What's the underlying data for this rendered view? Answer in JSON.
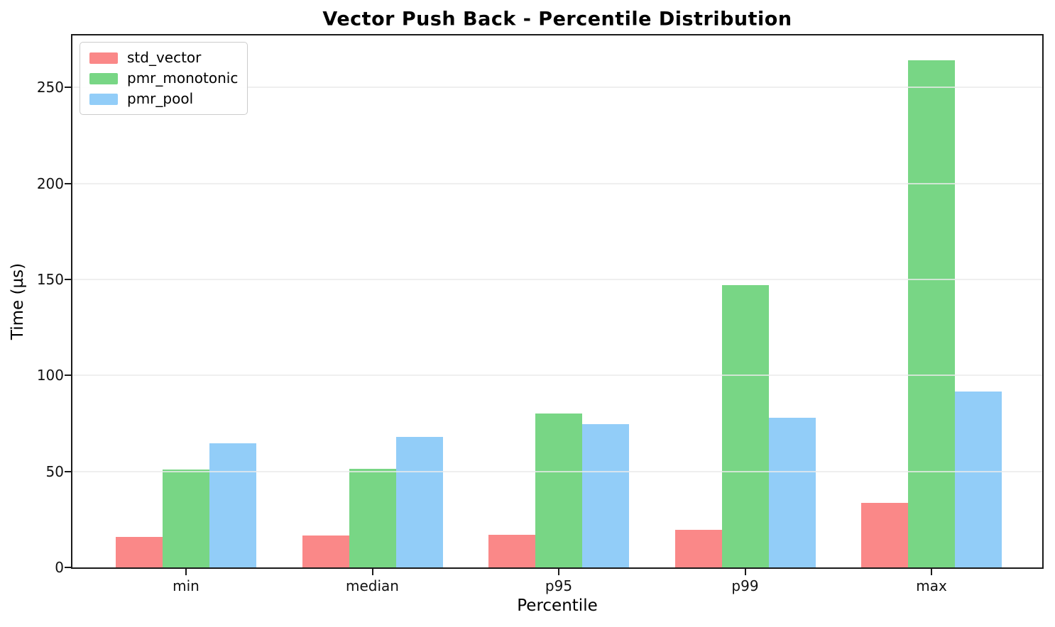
{
  "chart_data": {
    "type": "bar",
    "title": "Vector Push Back - Percentile Distribution",
    "xlabel": "Percentile",
    "ylabel": "Time (µs)",
    "categories": [
      "min",
      "median",
      "p95",
      "p99",
      "max"
    ],
    "series": [
      {
        "name": "std_vector",
        "color": "#fa8888",
        "values": [
          16,
          16.5,
          17,
          19.5,
          33.5
        ]
      },
      {
        "name": "pmr_monotonic",
        "color": "#78d685",
        "values": [
          51,
          51.5,
          80,
          147,
          264
        ]
      },
      {
        "name": "pmr_pool",
        "color": "#92cdf8",
        "values": [
          64.5,
          68,
          74.5,
          78,
          91.5
        ]
      }
    ],
    "ylim": [
      0,
      277
    ],
    "yticks": [
      0,
      50,
      100,
      150,
      200,
      250
    ],
    "grid": true,
    "grid_axis": "y",
    "legend_position": "upper left",
    "colors": {
      "spine": "#1a1a1a",
      "gridline": "#eaeaea",
      "background": "#ffffff",
      "text": "#000000"
    }
  }
}
